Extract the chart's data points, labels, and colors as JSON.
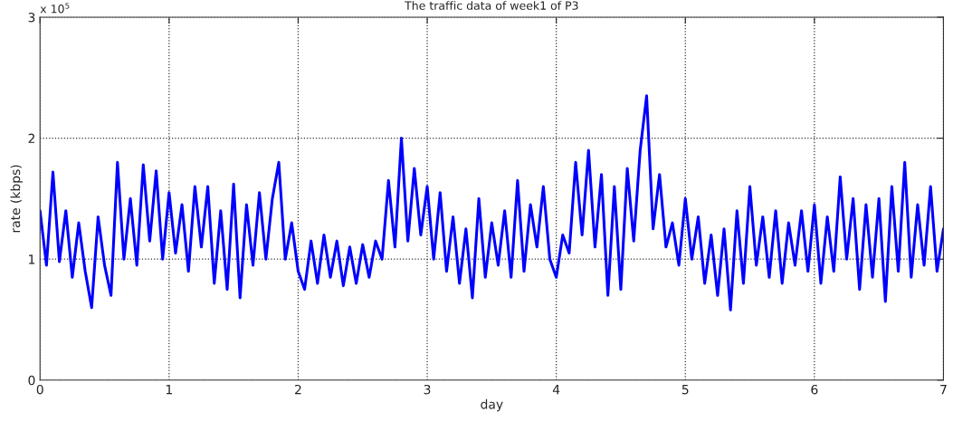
{
  "chart_data": {
    "type": "line",
    "title": "The traffic data of week1 of P3",
    "xlabel": "day",
    "ylabel": "rate (kbps)",
    "annotations": [
      "x 10$^{5}$"
    ],
    "x": [
      0.0,
      0.05,
      0.1,
      0.15,
      0.2,
      0.25,
      0.3,
      0.35,
      0.4,
      0.45,
      0.5,
      0.55,
      0.6,
      0.65,
      0.7,
      0.75,
      0.8,
      0.85,
      0.9,
      0.95,
      1.0,
      1.05,
      1.1,
      1.15,
      1.2,
      1.25,
      1.3,
      1.35,
      1.4,
      1.45,
      1.5,
      1.55,
      1.6,
      1.65,
      1.7,
      1.75,
      1.8,
      1.85,
      1.9,
      1.95,
      2.0,
      2.05,
      2.1,
      2.15,
      2.2,
      2.25,
      2.3,
      2.35,
      2.4,
      2.45,
      2.5,
      2.55,
      2.6,
      2.65,
      2.7,
      2.75,
      2.8,
      2.85,
      2.9,
      2.95,
      3.0,
      3.05,
      3.1,
      3.15,
      3.2,
      3.25,
      3.3,
      3.35,
      3.4,
      3.45,
      3.5,
      3.55,
      3.6,
      3.65,
      3.7,
      3.75,
      3.8,
      3.85,
      3.9,
      3.95,
      4.0,
      4.05,
      4.1,
      4.15,
      4.2,
      4.25,
      4.3,
      4.35,
      4.4,
      4.45,
      4.5,
      4.55,
      4.6,
      4.65,
      4.7,
      4.75,
      4.8,
      4.85,
      4.9,
      4.95,
      5.0,
      5.05,
      5.1,
      5.15,
      5.2,
      5.25,
      5.3,
      5.35,
      5.4,
      5.45,
      5.5,
      5.55,
      5.6,
      5.65,
      5.7,
      5.75,
      5.8,
      5.85,
      5.9,
      5.95,
      6.0,
      6.05,
      6.1,
      6.15,
      6.2,
      6.25,
      6.3,
      6.35,
      6.4,
      6.45,
      6.5,
      6.55,
      6.6,
      6.65,
      6.7,
      6.75,
      6.8,
      6.85,
      6.9,
      6.95,
      7.0
    ],
    "series": [
      {
        "color": "#0000ff",
        "values": [
          1.4,
          0.95,
          1.72,
          0.98,
          1.4,
          0.85,
          1.3,
          0.9,
          0.6,
          1.35,
          0.95,
          0.7,
          1.8,
          1.0,
          1.5,
          0.95,
          1.78,
          1.15,
          1.73,
          1.0,
          1.55,
          1.05,
          1.45,
          0.9,
          1.6,
          1.1,
          1.6,
          0.8,
          1.4,
          0.75,
          1.62,
          0.68,
          1.45,
          0.95,
          1.55,
          1.0,
          1.5,
          1.8,
          1.0,
          1.3,
          0.9,
          0.75,
          1.15,
          0.8,
          1.2,
          0.85,
          1.15,
          0.78,
          1.1,
          0.8,
          1.12,
          0.85,
          1.15,
          1.0,
          1.65,
          1.1,
          2.0,
          1.15,
          1.75,
          1.2,
          1.6,
          1.0,
          1.55,
          0.9,
          1.35,
          0.8,
          1.25,
          0.68,
          1.5,
          0.85,
          1.3,
          0.95,
          1.4,
          0.85,
          1.65,
          0.9,
          1.45,
          1.1,
          1.6,
          1.0,
          0.85,
          1.2,
          1.05,
          1.8,
          1.2,
          1.9,
          1.1,
          1.7,
          0.7,
          1.6,
          0.75,
          1.75,
          1.15,
          1.9,
          2.35,
          1.25,
          1.7,
          1.1,
          1.3,
          0.95,
          1.5,
          1.0,
          1.35,
          0.8,
          1.2,
          0.7,
          1.25,
          0.58,
          1.4,
          0.8,
          1.6,
          0.95,
          1.35,
          0.85,
          1.4,
          0.8,
          1.3,
          0.95,
          1.4,
          0.9,
          1.45,
          0.8,
          1.35,
          0.9,
          1.68,
          1.0,
          1.5,
          0.75,
          1.45,
          0.85,
          1.5,
          0.65,
          1.6,
          0.9,
          1.8,
          0.85,
          1.45,
          0.95,
          1.6,
          0.9,
          1.25
        ]
      }
    ],
    "xlim": [
      0,
      7
    ],
    "xticks": [
      0,
      1,
      2,
      3,
      4,
      5,
      6,
      7
    ],
    "ylim": [
      0,
      3
    ],
    "yticks": [
      0,
      1,
      2,
      3
    ],
    "grid": true,
    "line_style": "solid",
    "marker": "none"
  }
}
